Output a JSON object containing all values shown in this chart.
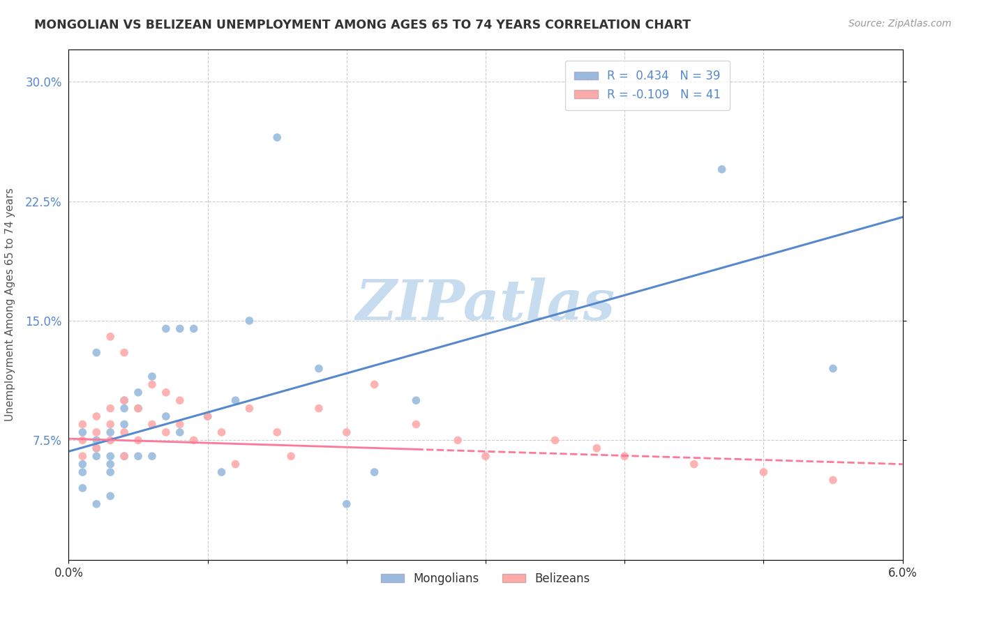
{
  "title": "MONGOLIAN VS BELIZEAN UNEMPLOYMENT AMONG AGES 65 TO 74 YEARS CORRELATION CHART",
  "source": "Source: ZipAtlas.com",
  "ylabel": "Unemployment Among Ages 65 to 74 years",
  "xlim": [
    0.0,
    0.06
  ],
  "ylim": [
    0.0,
    0.32
  ],
  "xtick_vals": [
    0.0,
    0.01,
    0.02,
    0.03,
    0.04,
    0.05,
    0.06
  ],
  "xtick_labels": [
    "0.0%",
    "",
    "",
    "",
    "",
    "",
    "6.0%"
  ],
  "ytick_vals": [
    0.075,
    0.15,
    0.225,
    0.3
  ],
  "ytick_labels": [
    "7.5%",
    "15.0%",
    "22.5%",
    "30.0%"
  ],
  "mongolian_color": "#99BBDD",
  "belizean_color": "#FFAAAA",
  "trend_mongolian_color": "#5588CC",
  "trend_belizean_color": "#FF7799",
  "R_mongolian": 0.434,
  "N_mongolian": 39,
  "R_belizean": -0.109,
  "N_belizean": 41,
  "trend_m_x0": 0.0,
  "trend_m_y0": 0.068,
  "trend_m_x1": 0.06,
  "trend_m_y1": 0.215,
  "trend_b_x0": 0.0,
  "trend_b_y0": 0.076,
  "trend_b_x1": 0.06,
  "trend_b_y1": 0.06,
  "trend_b_solid_end": 0.025,
  "mongolian_x": [
    0.001,
    0.001,
    0.001,
    0.002,
    0.002,
    0.002,
    0.002,
    0.003,
    0.003,
    0.003,
    0.003,
    0.003,
    0.004,
    0.004,
    0.004,
    0.004,
    0.005,
    0.005,
    0.005,
    0.006,
    0.006,
    0.007,
    0.007,
    0.008,
    0.008,
    0.009,
    0.01,
    0.011,
    0.012,
    0.013,
    0.015,
    0.018,
    0.02,
    0.022,
    0.025,
    0.047,
    0.055,
    0.001,
    0.002
  ],
  "mongolian_y": [
    0.06,
    0.055,
    0.045,
    0.065,
    0.075,
    0.07,
    0.035,
    0.08,
    0.065,
    0.06,
    0.055,
    0.04,
    0.095,
    0.1,
    0.085,
    0.065,
    0.095,
    0.105,
    0.065,
    0.115,
    0.065,
    0.145,
    0.09,
    0.145,
    0.08,
    0.145,
    0.09,
    0.055,
    0.1,
    0.15,
    0.265,
    0.12,
    0.035,
    0.055,
    0.1,
    0.245,
    0.12,
    0.08,
    0.13
  ],
  "belizean_x": [
    0.001,
    0.001,
    0.001,
    0.002,
    0.002,
    0.002,
    0.003,
    0.003,
    0.003,
    0.004,
    0.004,
    0.004,
    0.005,
    0.005,
    0.006,
    0.006,
    0.007,
    0.007,
    0.008,
    0.008,
    0.009,
    0.01,
    0.011,
    0.012,
    0.013,
    0.015,
    0.016,
    0.018,
    0.02,
    0.022,
    0.025,
    0.028,
    0.03,
    0.035,
    0.038,
    0.04,
    0.045,
    0.05,
    0.055,
    0.003,
    0.004
  ],
  "belizean_y": [
    0.075,
    0.085,
    0.065,
    0.08,
    0.09,
    0.07,
    0.095,
    0.075,
    0.085,
    0.1,
    0.08,
    0.065,
    0.095,
    0.075,
    0.11,
    0.085,
    0.105,
    0.08,
    0.1,
    0.085,
    0.075,
    0.09,
    0.08,
    0.06,
    0.095,
    0.08,
    0.065,
    0.095,
    0.08,
    0.11,
    0.085,
    0.075,
    0.065,
    0.075,
    0.07,
    0.065,
    0.06,
    0.055,
    0.05,
    0.14,
    0.13
  ],
  "watermark_text": "ZIPatlas",
  "watermark_color": "#C8DCF0",
  "background_color": "#FFFFFF",
  "grid_color": "#CCCCCC",
  "title_color": "#333333",
  "source_color": "#999999",
  "ylabel_color": "#555555",
  "ytick_color": "#5588CC",
  "xtick_color": "#333333"
}
